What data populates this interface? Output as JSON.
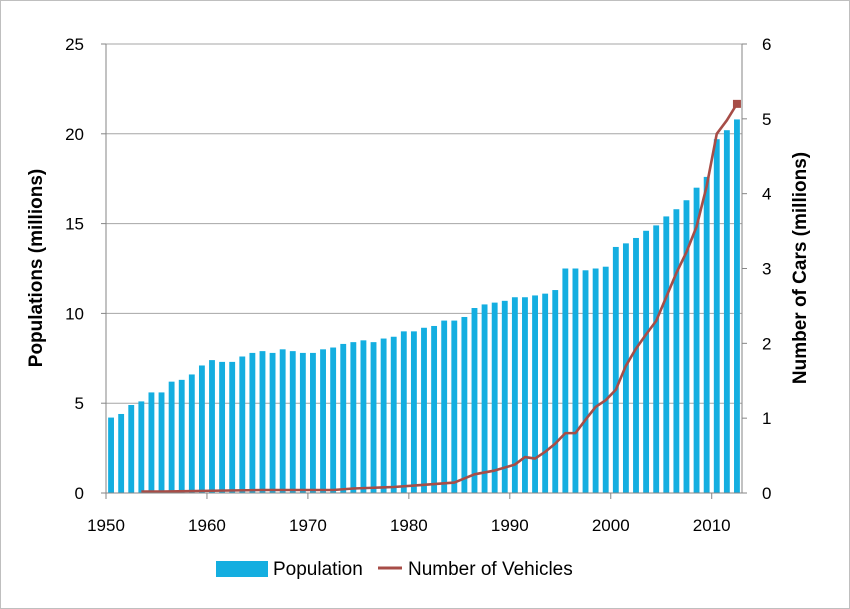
{
  "chart_data": {
    "type": "bar+line",
    "x_ticks": [
      "1950",
      "1960",
      "1970",
      "1980",
      "1990",
      "2000",
      "2010"
    ],
    "y_left": {
      "label": "Populations (millions)",
      "ticks": [
        "0",
        "5",
        "10",
        "15",
        "20",
        "25"
      ],
      "range": [
        0,
        25
      ]
    },
    "y_right": {
      "label": "Number of Cars (millions)",
      "ticks": [
        "0",
        "1",
        "2",
        "3",
        "4",
        "5",
        "6"
      ],
      "range": [
        0,
        6
      ]
    },
    "x_range": [
      1950,
      2012
    ],
    "grid": "horizontal",
    "legend": {
      "placement": "bottom",
      "items": [
        "Population",
        "Number of Vehicles"
      ]
    },
    "colors": {
      "population": "#14aee0",
      "vehicles": "#a74d47",
      "grid": "#a6a6a6"
    },
    "series": [
      {
        "name": "Population",
        "type": "bar",
        "axis": "left",
        "points": [
          [
            1950,
            4.2
          ],
          [
            1951,
            4.4
          ],
          [
            1952,
            4.9
          ],
          [
            1953,
            5.1
          ],
          [
            1954,
            5.6
          ],
          [
            1955,
            5.6
          ],
          [
            1956,
            6.2
          ],
          [
            1957,
            6.3
          ],
          [
            1958,
            6.6
          ],
          [
            1959,
            7.1
          ],
          [
            1960,
            7.4
          ],
          [
            1961,
            7.3
          ],
          [
            1962,
            7.3
          ],
          [
            1963,
            7.6
          ],
          [
            1964,
            7.8
          ],
          [
            1965,
            7.9
          ],
          [
            1966,
            7.8
          ],
          [
            1967,
            8.0
          ],
          [
            1968,
            7.9
          ],
          [
            1969,
            7.8
          ],
          [
            1970,
            7.8
          ],
          [
            1971,
            8.0
          ],
          [
            1972,
            8.1
          ],
          [
            1973,
            8.3
          ],
          [
            1974,
            8.4
          ],
          [
            1975,
            8.5
          ],
          [
            1976,
            8.4
          ],
          [
            1977,
            8.6
          ],
          [
            1978,
            8.7
          ],
          [
            1979,
            9.0
          ],
          [
            1980,
            9.0
          ],
          [
            1981,
            9.2
          ],
          [
            1982,
            9.3
          ],
          [
            1983,
            9.6
          ],
          [
            1984,
            9.6
          ],
          [
            1985,
            9.8
          ],
          [
            1986,
            10.3
          ],
          [
            1987,
            10.5
          ],
          [
            1988,
            10.6
          ],
          [
            1989,
            10.7
          ],
          [
            1990,
            10.9
          ],
          [
            1991,
            10.9
          ],
          [
            1992,
            11.0
          ],
          [
            1993,
            11.1
          ],
          [
            1994,
            11.3
          ],
          [
            1995,
            12.5
          ],
          [
            1996,
            12.5
          ],
          [
            1997,
            12.4
          ],
          [
            1998,
            12.5
          ],
          [
            1999,
            12.6
          ],
          [
            2000,
            13.7
          ],
          [
            2001,
            13.9
          ],
          [
            2002,
            14.2
          ],
          [
            2003,
            14.6
          ],
          [
            2004,
            14.9
          ],
          [
            2005,
            15.4
          ],
          [
            2006,
            15.8
          ],
          [
            2007,
            16.3
          ],
          [
            2008,
            17.0
          ],
          [
            2009,
            17.6
          ],
          [
            2010,
            19.7
          ],
          [
            2011,
            20.2
          ],
          [
            2012,
            20.8
          ]
        ]
      },
      {
        "name": "Number of Vehicles",
        "type": "line",
        "axis": "right",
        "points": [
          [
            1953,
            0.02
          ],
          [
            1955,
            0.02
          ],
          [
            1960,
            0.03
          ],
          [
            1965,
            0.04
          ],
          [
            1970,
            0.04
          ],
          [
            1972,
            0.04
          ],
          [
            1974,
            0.06
          ],
          [
            1976,
            0.07
          ],
          [
            1978,
            0.08
          ],
          [
            1980,
            0.1
          ],
          [
            1982,
            0.12
          ],
          [
            1984,
            0.14
          ],
          [
            1986,
            0.25
          ],
          [
            1988,
            0.3
          ],
          [
            1990,
            0.38
          ],
          [
            1991,
            0.48
          ],
          [
            1992,
            0.46
          ],
          [
            1993,
            0.55
          ],
          [
            1994,
            0.66
          ],
          [
            1995,
            0.8
          ],
          [
            1996,
            0.8
          ],
          [
            1997,
            0.98
          ],
          [
            1998,
            1.15
          ],
          [
            1999,
            1.24
          ],
          [
            2000,
            1.38
          ],
          [
            2001,
            1.7
          ],
          [
            2002,
            1.93
          ],
          [
            2003,
            2.12
          ],
          [
            2004,
            2.3
          ],
          [
            2005,
            2.62
          ],
          [
            2006,
            2.94
          ],
          [
            2007,
            3.22
          ],
          [
            2008,
            3.56
          ],
          [
            2009,
            4.1
          ],
          [
            2010,
            4.8
          ],
          [
            2011,
            4.98
          ],
          [
            2012,
            5.2
          ]
        ]
      }
    ]
  }
}
